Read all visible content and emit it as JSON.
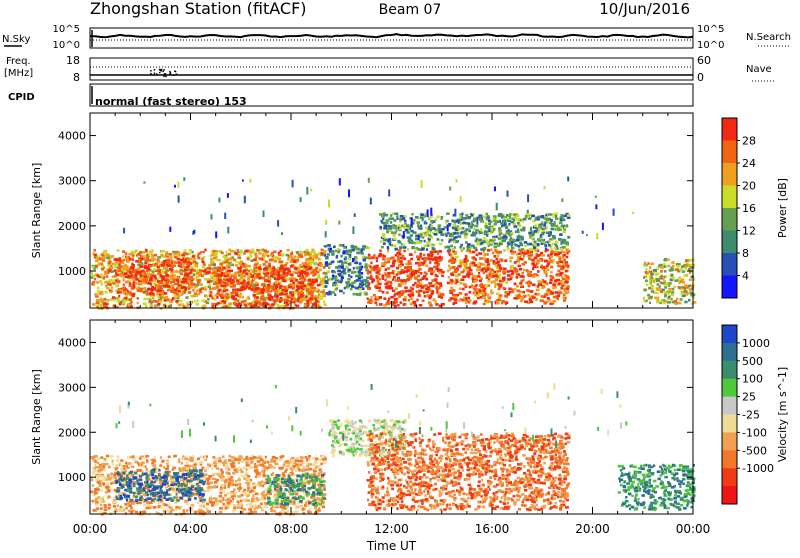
{
  "header": {
    "station": "Zhongshan Station (fitACF)",
    "beam": "Beam 07",
    "date": "10/Jun/2016"
  },
  "panels": {
    "nsky": {
      "label": "N.Sky",
      "ticks": [
        "10^5",
        "10^0"
      ]
    },
    "nsearch": {
      "label": "N.Search",
      "ticks": [
        "10^5",
        "10^0"
      ]
    },
    "freq": {
      "label_line1": "Freq.",
      "label_line2": "[MHz]",
      "ticks": [
        "18",
        "8"
      ]
    },
    "nave": {
      "label": "Nave",
      "ticks": [
        "60",
        "0"
      ]
    },
    "cpid": {
      "label": "CPID",
      "text": "normal (fast stereo) 153"
    }
  },
  "colors": {
    "power_scale": [
      "#1414ff",
      "#2850b4",
      "#3c8c6e",
      "#64a050",
      "#c8dc28",
      "#f0a01e",
      "#f06414",
      "#f02814"
    ],
    "velocity_scale": [
      "#1e46c8",
      "#2d6e91",
      "#3c8c6e",
      "#50c83c",
      "#c8c8c8",
      "#f0dc96",
      "#f0a050",
      "#f07828",
      "#f03c14",
      "#f01414"
    ]
  },
  "chart_data": [
    {
      "type": "heatmap",
      "panel": "power",
      "xlabel": "",
      "ylabel": "Slant Range [km]",
      "xticks": [
        "00:00",
        "04:00",
        "08:00",
        "12:00",
        "16:00",
        "20:00",
        "00:00"
      ],
      "xlim_hours": [
        0,
        24
      ],
      "ylim_km": [
        180,
        4500
      ],
      "yticks": [
        1000,
        2000,
        3000,
        4000
      ],
      "colorbar": {
        "label": "Power [dB]",
        "ticks": [
          4,
          8,
          12,
          16,
          20,
          24,
          28
        ],
        "range": [
          0,
          32
        ]
      },
      "echo_regions": [
        {
          "t0": 0.0,
          "t1": 9.3,
          "r0": 200,
          "r1": 1500,
          "level": 22
        },
        {
          "t0": 1.0,
          "t1": 4.0,
          "r0": 500,
          "r1": 1300,
          "level": 28
        },
        {
          "t0": 5.0,
          "t1": 9.0,
          "r0": 250,
          "r1": 1100,
          "level": 29
        },
        {
          "t0": 9.3,
          "t1": 11.0,
          "r0": 500,
          "r1": 1600,
          "level": 10
        },
        {
          "t0": 11.0,
          "t1": 14.0,
          "r0": 250,
          "r1": 1500,
          "level": 29
        },
        {
          "t0": 14.2,
          "t1": 19.0,
          "r0": 300,
          "r1": 1500,
          "level": 26
        },
        {
          "t0": 11.5,
          "t1": 19.0,
          "r0": 1500,
          "r1": 2300,
          "level": 12
        },
        {
          "t0": 22.0,
          "t1": 24.0,
          "r0": 300,
          "r1": 1300,
          "level": 18
        }
      ]
    },
    {
      "type": "heatmap",
      "panel": "velocity",
      "xlabel": "Time UT",
      "ylabel": "Slant Range [km]",
      "xticks": [
        "00:00",
        "04:00",
        "08:00",
        "12:00",
        "16:00",
        "20:00",
        "00:00"
      ],
      "xlim_hours": [
        0,
        24
      ],
      "ylim_km": [
        180,
        4500
      ],
      "yticks": [
        1000,
        2000,
        3000,
        4000
      ],
      "colorbar": {
        "label": "Velocity [m s^-1]",
        "ticks": [
          "1000",
          "500",
          "100",
          "25",
          "-25",
          "-100",
          "-500",
          "-1000"
        ]
      },
      "echo_regions": [
        {
          "t0": 0.0,
          "t1": 9.3,
          "r0": 200,
          "r1": 1500,
          "class": 6
        },
        {
          "t0": 1.0,
          "t1": 4.5,
          "r0": 500,
          "r1": 1200,
          "class": 1
        },
        {
          "t0": 7.0,
          "t1": 9.3,
          "r0": 400,
          "r1": 1100,
          "class": 2
        },
        {
          "t0": 9.5,
          "t1": 12.5,
          "r0": 1500,
          "r1": 2300,
          "class": 4
        },
        {
          "t0": 11.0,
          "t1": 19.0,
          "r0": 300,
          "r1": 2000,
          "class": 7
        },
        {
          "t0": 21.0,
          "t1": 24.0,
          "r0": 300,
          "r1": 1300,
          "class": 2
        }
      ]
    }
  ]
}
